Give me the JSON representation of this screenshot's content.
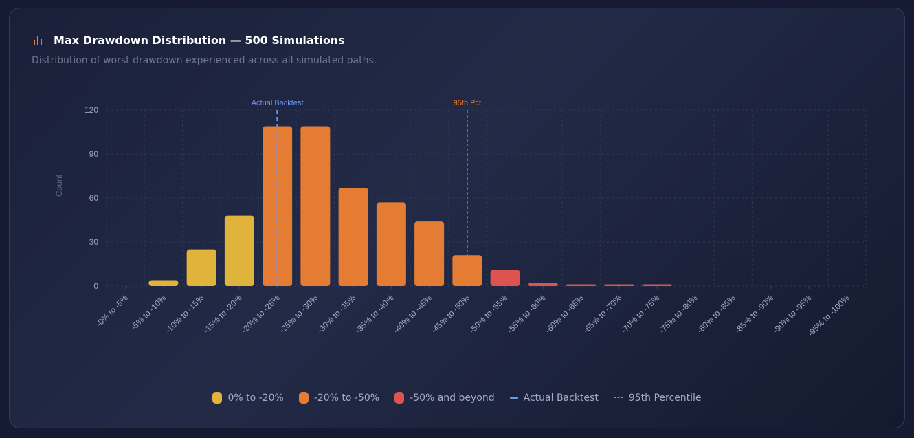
{
  "header": {
    "title": "Max Drawdown Distribution — 500 Simulations",
    "subtitle": "Distribution of worst drawdown experienced across all simulated paths.",
    "icon": "bar-chart-icon"
  },
  "colors": {
    "yellow": "#e0b43a",
    "orange": "#e57c33",
    "red": "#dd5350",
    "blue": "#6f95ee",
    "grid": "#2e3756"
  },
  "chart_data": {
    "type": "bar",
    "title": "Max Drawdown Distribution — 500 Simulations",
    "xlabel": "",
    "ylabel": "Count",
    "ylim": [
      0,
      120
    ],
    "yticks": [
      0,
      30,
      60,
      90,
      120
    ],
    "grid": true,
    "categories": [
      "-0% to -5%",
      "-5% to -10%",
      "-10% to -15%",
      "-15% to -20%",
      "-20% to -25%",
      "-25% to -30%",
      "-30% to -35%",
      "-35% to -40%",
      "-40% to -45%",
      "-45% to -50%",
      "-50% to -55%",
      "-55% to -60%",
      "-60% to -65%",
      "-65% to -70%",
      "-70% to -75%",
      "-75% to -80%",
      "-80% to -85%",
      "-85% to -90%",
      "-90% to -95%",
      "-95% to -100%"
    ],
    "values": [
      0,
      4,
      25,
      48,
      109,
      109,
      67,
      57,
      44,
      21,
      11,
      2,
      1,
      1,
      1,
      0,
      0,
      0,
      0,
      0
    ],
    "groups": [
      "yellow",
      "yellow",
      "yellow",
      "yellow",
      "orange",
      "orange",
      "orange",
      "orange",
      "orange",
      "orange",
      "red",
      "red",
      "red",
      "red",
      "red",
      "red",
      "red",
      "red",
      "red",
      "red"
    ],
    "annotations": [
      {
        "label": "Actual Backtest",
        "category_index": 4,
        "style": "dashed-blue"
      },
      {
        "label": "95th Pct",
        "category_index": 9,
        "style": "dashed-orange"
      }
    ],
    "legend": {
      "position": "bottom",
      "items": [
        "0% to -20%",
        "-20% to -50%",
        "-50% and beyond",
        "Actual Backtest",
        "95th Percentile"
      ]
    }
  }
}
